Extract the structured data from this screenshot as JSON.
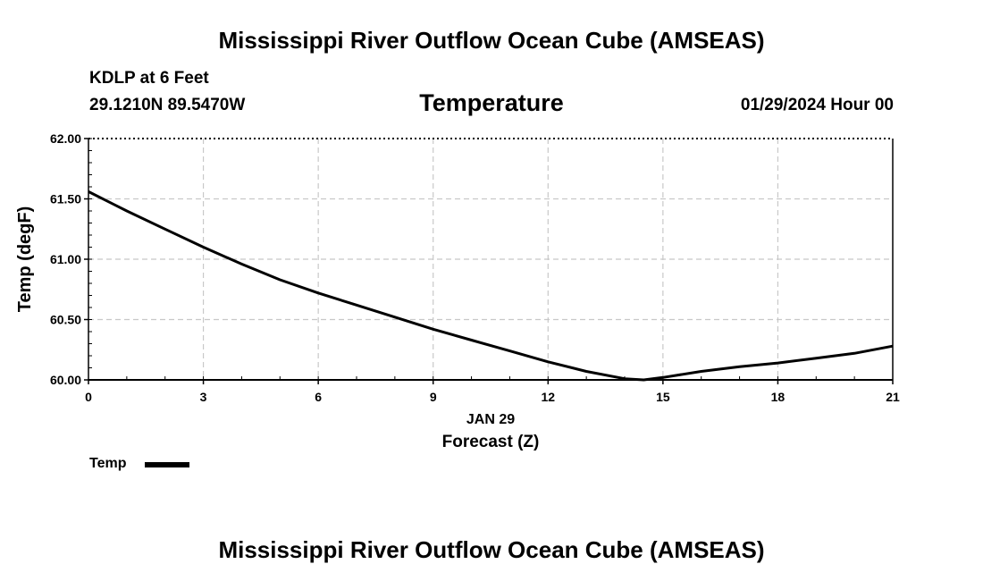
{
  "header": {
    "title": "Mississippi River Outflow Ocean Cube (AMSEAS)",
    "station": "KDLP at 6 Feet",
    "coords": "29.1210N  89.5470W",
    "chart_title": "Temperature",
    "date": "01/29/2024 Hour 00"
  },
  "footer": {
    "title": "Mississippi River Outflow Ocean Cube (AMSEAS)"
  },
  "legend": {
    "label": "Temp",
    "color": "#000000"
  },
  "chart_data": {
    "type": "line",
    "title": "Temperature",
    "xlabel": "Forecast (Z)",
    "xsublabel": "JAN 29",
    "ylabel": "Temp (degF)",
    "xlim": [
      0,
      21
    ],
    "ylim": [
      60.0,
      62.0
    ],
    "xticks": [
      0,
      3,
      6,
      9,
      12,
      15,
      18,
      21
    ],
    "yticks": [
      60.0,
      60.5,
      61.0,
      61.5,
      62.0
    ],
    "ytick_labels": [
      "60.00",
      "60.50",
      "61.00",
      "61.50",
      "62.00"
    ],
    "grid": true,
    "legend_position": "bottom-left",
    "series": [
      {
        "name": "Temp",
        "color": "#000000",
        "x": [
          0,
          1,
          2,
          3,
          4,
          5,
          6,
          7,
          8,
          9,
          10,
          11,
          12,
          13,
          14,
          14.5,
          15,
          16,
          17,
          18,
          19,
          20,
          21
        ],
        "values": [
          61.56,
          61.4,
          61.25,
          61.1,
          60.96,
          60.83,
          60.72,
          60.62,
          60.52,
          60.42,
          60.33,
          60.24,
          60.15,
          60.07,
          60.01,
          60.0,
          60.02,
          60.07,
          60.11,
          60.14,
          60.18,
          60.22,
          60.28
        ]
      }
    ]
  }
}
